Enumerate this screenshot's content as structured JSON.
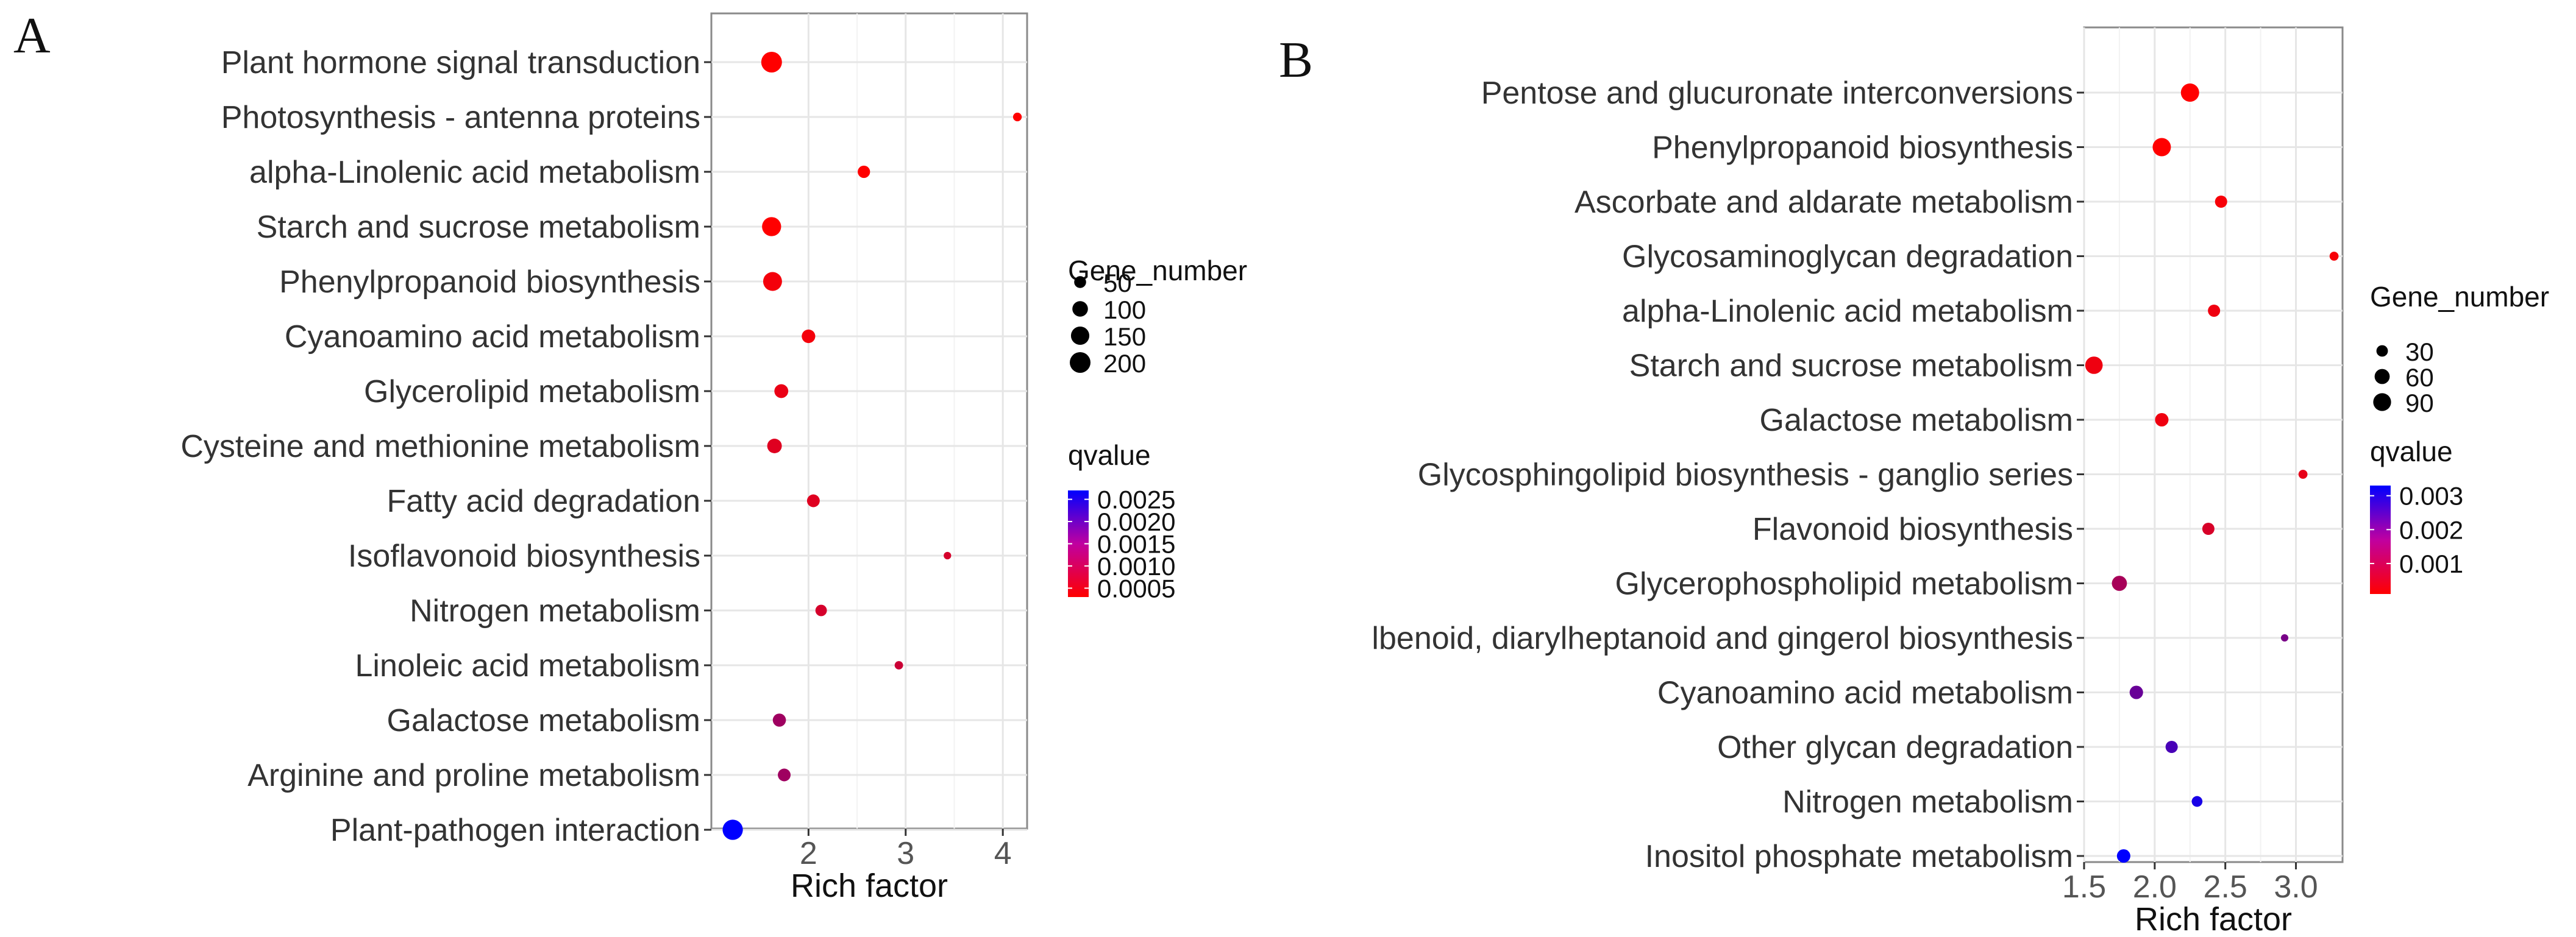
{
  "panels": [
    {
      "letter": "A",
      "chart_data": {
        "type": "scatter",
        "title": "",
        "xlabel": "Rich factor",
        "ylabel": "",
        "xlim": [
          1.0,
          4.25
        ],
        "xticks": [
          2,
          3,
          4
        ],
        "categories": [
          "Plant hormone signal transduction",
          "Photosynthesis - antenna proteins",
          "alpha-Linolenic acid metabolism",
          "Starch and sucrose metabolism",
          "Phenylpropanoid biosynthesis",
          "Cyanoamino acid metabolism",
          "Glycerolipid metabolism",
          "Cysteine and methionine metabolism",
          "Fatty acid degradation",
          "Isoflavonoid biosynthesis",
          "Nitrogen metabolism",
          "Linoleic acid metabolism",
          "Galactose metabolism",
          "Arginine and proline metabolism",
          "Plant-pathogen interaction"
        ],
        "points": [
          {
            "x": 1.62,
            "gene_number": 200,
            "qvalue": 0.0003
          },
          {
            "x": 4.15,
            "gene_number": 20,
            "qvalue": 0.0003
          },
          {
            "x": 2.57,
            "gene_number": 55,
            "qvalue": 0.0003
          },
          {
            "x": 1.62,
            "gene_number": 165,
            "qvalue": 0.0003
          },
          {
            "x": 1.63,
            "gene_number": 160,
            "qvalue": 0.0004
          },
          {
            "x": 2.0,
            "gene_number": 70,
            "qvalue": 0.0004
          },
          {
            "x": 1.72,
            "gene_number": 75,
            "qvalue": 0.0005
          },
          {
            "x": 1.65,
            "gene_number": 85,
            "qvalue": 0.0006
          },
          {
            "x": 2.05,
            "gene_number": 60,
            "qvalue": 0.0006
          },
          {
            "x": 3.43,
            "gene_number": 12,
            "qvalue": 0.0007
          },
          {
            "x": 2.13,
            "gene_number": 45,
            "qvalue": 0.0007
          },
          {
            "x": 2.93,
            "gene_number": 18,
            "qvalue": 0.0008
          },
          {
            "x": 1.7,
            "gene_number": 65,
            "qvalue": 0.0012
          },
          {
            "x": 1.75,
            "gene_number": 60,
            "qvalue": 0.0012
          },
          {
            "x": 1.22,
            "gene_number": 190,
            "qvalue": 0.0027
          }
        ],
        "size_legend": {
          "title": "Gene_number",
          "entries": [
            50,
            100,
            150,
            200
          ],
          "labels": [
            "50",
            "100",
            "150",
            "200"
          ]
        },
        "color_legend": {
          "title": "qvalue",
          "min": 0.0003,
          "max": 0.0027,
          "ticks": [
            0.0025,
            0.002,
            0.0015,
            0.001,
            0.0005
          ],
          "labels": [
            "0.0025",
            "0.0020",
            "0.0015",
            "0.0010",
            "0.0005"
          ],
          "low_color": "#ff0000",
          "high_color": "#0000ff"
        },
        "grid": true
      }
    },
    {
      "letter": "B",
      "chart_data": {
        "type": "scatter",
        "title": "",
        "xlabel": "Rich factor",
        "ylabel": "",
        "xlim": [
          1.5,
          3.33
        ],
        "xticks": [
          1.5,
          2.0,
          2.5,
          3.0
        ],
        "xtick_labels": [
          "1.5",
          "2.0",
          "2.5",
          "3.0"
        ],
        "categories": [
          "Pentose and glucuronate interconversions",
          "Phenylpropanoid biosynthesis",
          "Ascorbate and aldarate metabolism",
          "Glycosaminoglycan degradation",
          "alpha-Linolenic acid metabolism",
          "Starch and sucrose metabolism",
          "Galactose metabolism",
          "Glycosphingolipid biosynthesis - ganglio series",
          "Flavonoid biosynthesis",
          "Glycerophospholipid metabolism",
          "lbenoid, diarylheptanoid and gingerol biosynthesis",
          "Cyanoamino acid metabolism",
          "Other glycan degradation",
          "Nitrogen metabolism",
          "Inositol phosphate metabolism"
        ],
        "points": [
          {
            "x": 2.25,
            "gene_number": 95,
            "qvalue": 0.0001
          },
          {
            "x": 2.05,
            "gene_number": 95,
            "qvalue": 0.0001
          },
          {
            "x": 2.47,
            "gene_number": 35,
            "qvalue": 0.0002
          },
          {
            "x": 3.27,
            "gene_number": 15,
            "qvalue": 0.0002
          },
          {
            "x": 2.42,
            "gene_number": 35,
            "qvalue": 0.0003
          },
          {
            "x": 1.57,
            "gene_number": 85,
            "qvalue": 0.0003
          },
          {
            "x": 2.05,
            "gene_number": 45,
            "qvalue": 0.0003
          },
          {
            "x": 3.05,
            "gene_number": 15,
            "qvalue": 0.0004
          },
          {
            "x": 2.38,
            "gene_number": 35,
            "qvalue": 0.0006
          },
          {
            "x": 1.75,
            "gene_number": 60,
            "qvalue": 0.0012
          },
          {
            "x": 2.92,
            "gene_number": 8,
            "qvalue": 0.0018
          },
          {
            "x": 1.87,
            "gene_number": 45,
            "qvalue": 0.002
          },
          {
            "x": 2.12,
            "gene_number": 35,
            "qvalue": 0.0024
          },
          {
            "x": 2.3,
            "gene_number": 25,
            "qvalue": 0.003
          },
          {
            "x": 1.78,
            "gene_number": 45,
            "qvalue": 0.0033
          }
        ],
        "size_legend": {
          "title": "Gene_number",
          "entries": [
            30,
            60,
            90
          ],
          "labels": [
            "30",
            "60",
            "90"
          ]
        },
        "color_legend": {
          "title": "qvalue",
          "min": 0.0001,
          "max": 0.0033,
          "ticks": [
            0.003,
            0.002,
            0.001
          ],
          "labels": [
            "0.003",
            "0.002",
            "0.001"
          ],
          "low_color": "#ff0000",
          "high_color": "#0000ff"
        },
        "grid": true
      }
    }
  ]
}
